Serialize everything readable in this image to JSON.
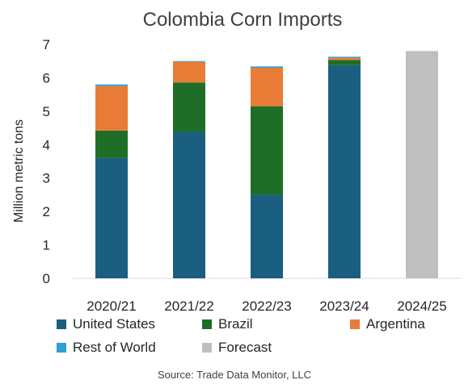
{
  "chart_data": {
    "type": "bar",
    "stacked": true,
    "title": "Colombia Corn Imports",
    "ylabel": "Million metric tons",
    "xlabel": "",
    "ylim": [
      0,
      7
    ],
    "yticks": [
      "0",
      "1",
      "2",
      "3",
      "4",
      "5",
      "6",
      "7"
    ],
    "categories": [
      "2020/21",
      "2021/22",
      "2022/23",
      "2023/24",
      "2024/25"
    ],
    "series": [
      {
        "name": "United States",
        "color": "#1a5e80",
        "values": [
          3.6,
          4.38,
          2.5,
          6.38,
          0
        ]
      },
      {
        "name": "Brazil",
        "color": "#1e6e27",
        "values": [
          0.82,
          1.48,
          2.65,
          0.15,
          0
        ]
      },
      {
        "name": "Argentina",
        "color": "#e87c36",
        "values": [
          1.33,
          0.62,
          1.15,
          0.07,
          0
        ]
      },
      {
        "name": "Rest of World",
        "color": "#2e9fd4",
        "values": [
          0.05,
          0.02,
          0.04,
          0.03,
          0
        ]
      },
      {
        "name": "Forecast",
        "color": "#bfbfbf",
        "values": [
          0,
          0,
          0,
          0,
          6.8
        ]
      }
    ],
    "grid": false,
    "legend": "bottom",
    "source": "Source: Trade Data Monitor, LLC"
  }
}
